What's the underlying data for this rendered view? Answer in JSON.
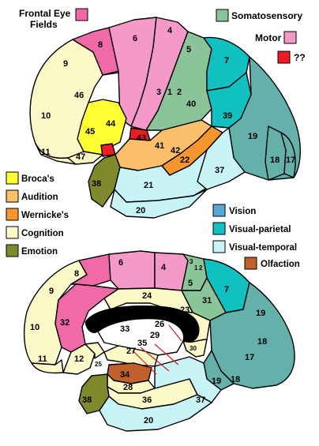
{
  "legend": {
    "frontal_eye_fields": {
      "label_line1": "Frontal Eye",
      "label_line2": "Fields",
      "color": "#f06aa8"
    },
    "somatosensory": {
      "label": "Somatosensory",
      "color": "#8cc49a"
    },
    "motor": {
      "label": "Motor",
      "color": "#f59ac8"
    },
    "unknown": {
      "label": "??",
      "color": "#ee1c24"
    },
    "brocas": {
      "label": "Broca's",
      "color": "#ffff33"
    },
    "audition": {
      "label": "Audition",
      "color": "#fcc06c"
    },
    "wernickes": {
      "label": "Wernicke's",
      "color": "#f7962e"
    },
    "cognition": {
      "label": "Cognition",
      "color": "#fdf8c8"
    },
    "emotion": {
      "label": "Emotion",
      "color": "#7f8a2c"
    },
    "vision": {
      "label": "Vision",
      "color": "#5aa8d6"
    },
    "visual_parietal": {
      "label": "Visual-parietal",
      "color": "#11c0c0"
    },
    "visual_temporal": {
      "label": "Visual-temporal",
      "color": "#c8f4f8"
    },
    "olfaction": {
      "label": "Olfaction",
      "color": "#c0602c"
    }
  },
  "lateral_areas": [
    "8",
    "6",
    "4",
    "5",
    "7",
    "9",
    "46",
    "3",
    "1",
    "2",
    "40",
    "39",
    "10",
    "45",
    "44",
    "43",
    "41",
    "42",
    "22",
    "19",
    "18",
    "17",
    "11",
    "47",
    "38",
    "21",
    "37",
    "20"
  ],
  "medial_areas": [
    "8",
    "6",
    "4",
    "3",
    "1",
    "2",
    "5",
    "7",
    "9",
    "24",
    "23",
    "31",
    "19",
    "32",
    "33",
    "26",
    "29",
    "10",
    "30",
    "18",
    "17",
    "11",
    "12",
    "25",
    "27",
    "35",
    "34",
    "28",
    "19",
    "18",
    "38",
    "36",
    "37",
    "20"
  ]
}
